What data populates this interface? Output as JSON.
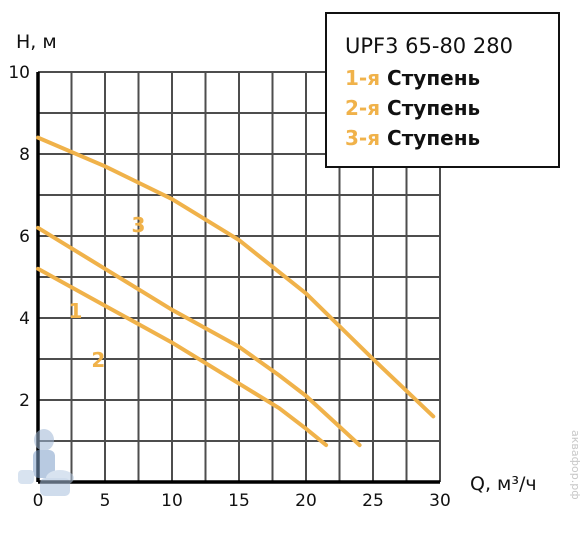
{
  "chart_data": {
    "type": "line",
    "title": "UPF3 65-80 280",
    "xlabel": "Q, м³/ч",
    "ylabel": "H, м",
    "xlim": [
      0,
      30
    ],
    "ylim": [
      0,
      10
    ],
    "x_ticks": [
      0,
      5,
      10,
      15,
      20,
      25,
      30
    ],
    "y_ticks": [
      2,
      4,
      6,
      8,
      10
    ],
    "grid": true,
    "legend_placement": "top-right",
    "line_color": "#f0b24a",
    "series": [
      {
        "name": "1-я Ступень",
        "label": "1",
        "label_at": [
          2.8,
          4.0
        ],
        "x": [
          0,
          5,
          10,
          15,
          18,
          20,
          21.5
        ],
        "y": [
          5.2,
          4.3,
          3.4,
          2.4,
          1.8,
          1.3,
          0.9
        ]
      },
      {
        "name": "2-я Ступень",
        "label": "2",
        "label_at": [
          4.5,
          2.8
        ],
        "x": [
          0,
          5,
          10,
          15,
          18,
          20,
          22,
          24
        ],
        "y": [
          6.2,
          5.2,
          4.2,
          3.3,
          2.6,
          2.1,
          1.5,
          0.9
        ]
      },
      {
        "name": "3-я Ступень",
        "label": "3",
        "label_at": [
          7.5,
          6.1
        ],
        "x": [
          0,
          5,
          10,
          15,
          20,
          25,
          29.5
        ],
        "y": [
          8.4,
          7.7,
          6.9,
          5.9,
          4.6,
          3.0,
          1.6
        ]
      }
    ]
  },
  "legend": {
    "title": "UPF3 65-80 280",
    "items": [
      {
        "num": "1-я",
        "text": "Ступень"
      },
      {
        "num": "2-я",
        "text": "Ступень"
      },
      {
        "num": "3-я",
        "text": "Ступень"
      }
    ]
  },
  "watermark": "аквафор.рф"
}
